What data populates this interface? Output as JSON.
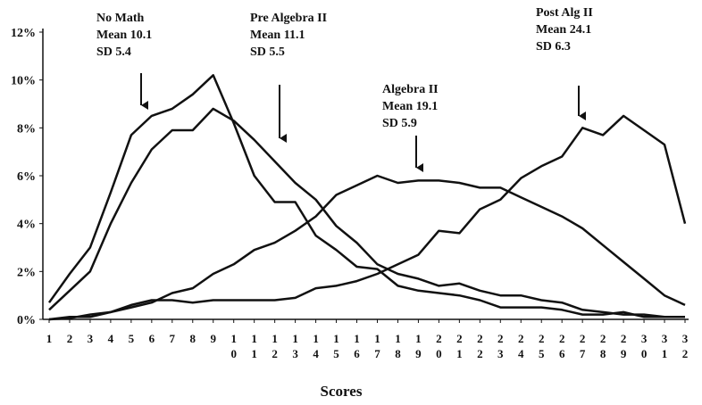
{
  "chart_data": {
    "type": "line",
    "xlabel": "Scores",
    "categories": [
      "1",
      "2",
      "3",
      "4",
      "5",
      "6",
      "7",
      "8",
      "9",
      "10",
      "11",
      "12",
      "13",
      "14",
      "15",
      "16",
      "17",
      "18",
      "19",
      "20",
      "21",
      "22",
      "23",
      "24",
      "25",
      "26",
      "27",
      "28",
      "29",
      "30",
      "31",
      "32"
    ],
    "series": [
      {
        "name": "No Math",
        "color": "#111111",
        "values": [
          0.7,
          1.9,
          3.0,
          5.3,
          7.7,
          8.5,
          8.8,
          9.4,
          10.2,
          8.2,
          6.0,
          4.9,
          4.9,
          3.5,
          2.9,
          2.2,
          2.1,
          1.4,
          1.2,
          1.1,
          1.0,
          0.8,
          0.5,
          0.5,
          0.5,
          0.4,
          0.2,
          0.2,
          0.3,
          0.1,
          0.1,
          0.1
        ]
      },
      {
        "name": "Pre Algebra II",
        "color": "#111111",
        "values": [
          0.4,
          1.2,
          2.0,
          4.0,
          5.7,
          7.1,
          7.9,
          7.9,
          8.8,
          8.3,
          7.5,
          6.6,
          5.7,
          5.0,
          3.9,
          3.2,
          2.3,
          1.9,
          1.7,
          1.4,
          1.5,
          1.2,
          1.0,
          1.0,
          0.8,
          0.7,
          0.4,
          0.3,
          0.2,
          0.2,
          0.1,
          0.1
        ]
      },
      {
        "name": "Algebra II",
        "color": "#111111",
        "values": [
          0,
          0.05,
          0.2,
          0.3,
          0.5,
          0.7,
          1.1,
          1.3,
          1.9,
          2.3,
          2.9,
          3.2,
          3.7,
          4.3,
          5.2,
          5.6,
          6.0,
          5.7,
          5.8,
          5.8,
          5.7,
          5.5,
          5.5,
          5.1,
          4.7,
          4.3,
          3.8,
          3.1,
          2.4,
          1.7,
          1.0,
          0.6
        ]
      },
      {
        "name": "Post Alg II",
        "color": "#111111",
        "values": [
          0,
          0.1,
          0.1,
          0.3,
          0.6,
          0.8,
          0.8,
          0.7,
          0.8,
          0.8,
          0.8,
          0.8,
          0.9,
          1.3,
          1.4,
          1.6,
          1.9,
          2.3,
          2.7,
          3.7,
          3.6,
          4.6,
          5.0,
          5.9,
          6.4,
          6.8,
          8.0,
          7.7,
          8.5,
          7.9,
          7.3,
          4.0
        ]
      }
    ],
    "annotations": [
      [
        "No Math",
        "Mean 10.1",
        "SD 5.4"
      ],
      [
        "Pre Algebra II",
        "Mean 11.1",
        "SD 5.5"
      ],
      [
        "Algebra II",
        "Mean 19.1",
        "SD 5.9"
      ],
      [
        "Post Alg II",
        "Mean 24.1",
        "SD 6.3"
      ]
    ],
    "ylim": [
      0,
      12
    ],
    "yticks": [
      {
        "value": 0,
        "label": "0%"
      },
      {
        "value": 2,
        "label": "2%"
      },
      {
        "value": 4,
        "label": "4%"
      },
      {
        "value": 6,
        "label": "6%"
      },
      {
        "value": 8,
        "label": "8%"
      },
      {
        "value": 10,
        "label": "10%"
      },
      {
        "value": 12,
        "label": "12%"
      }
    ]
  }
}
